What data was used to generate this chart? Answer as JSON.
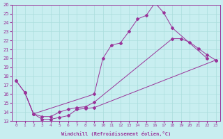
{
  "xlabel": "Windchill (Refroidissement éolien,°C)",
  "ylabel": "",
  "xlim": [
    -0.5,
    23.5
  ],
  "ylim": [
    13,
    26
  ],
  "xticks": [
    0,
    1,
    2,
    3,
    4,
    5,
    6,
    7,
    8,
    9,
    10,
    11,
    12,
    13,
    14,
    15,
    16,
    17,
    18,
    19,
    20,
    21,
    22,
    23
  ],
  "yticks": [
    13,
    14,
    15,
    16,
    17,
    18,
    19,
    20,
    21,
    22,
    23,
    24,
    25,
    26
  ],
  "bg_color": "#c8eef0",
  "line_color": "#993399",
  "grid_color": "#aadddd",
  "line1_x": [
    0,
    1,
    2,
    9,
    10,
    11,
    12,
    13,
    14,
    15,
    16,
    17,
    18,
    22
  ],
  "line1_y": [
    17.5,
    16.2,
    13.8,
    16.0,
    20.0,
    21.5,
    21.7,
    23.0,
    24.4,
    24.8,
    26.2,
    25.1,
    23.4,
    20.0
  ],
  "line2_x": [
    0,
    1,
    2,
    3,
    4,
    5,
    6,
    7,
    8,
    9,
    18,
    19,
    20,
    21,
    22,
    23
  ],
  "line2_y": [
    17.5,
    16.2,
    13.8,
    13.5,
    13.5,
    14.0,
    14.3,
    14.5,
    14.6,
    15.1,
    22.2,
    22.2,
    21.8,
    21.1,
    20.4,
    19.8
  ],
  "line3_x": [
    1,
    2,
    3,
    4,
    5,
    6,
    7,
    8,
    9,
    23
  ],
  "line3_y": [
    16.2,
    13.8,
    13.2,
    13.2,
    13.4,
    13.6,
    14.3,
    14.4,
    14.5,
    19.8
  ]
}
